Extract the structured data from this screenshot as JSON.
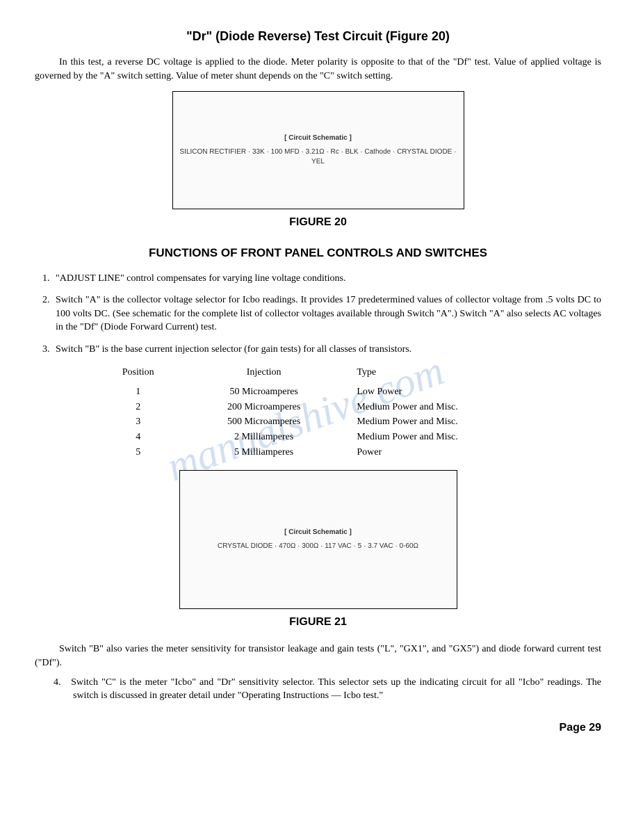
{
  "title_main": "\"Dr\" (Diode Reverse) Test Circuit (Figure 20)",
  "para1": "In this test, a reverse DC voltage is applied to the diode. Meter polarity is opposite to that of the \"Df\" test. Value of applied voltage is governed by the \"A\" switch setting. Value of meter shunt depends on the \"C\" switch setting.",
  "fig20_caption": "FIGURE 20",
  "fig20_labels": "SILICON RECTIFIER · 33K · 100 MFD · 3.21Ω · Rc · BLK · Cathode · CRYSTAL DIODE · YEL",
  "section2": "FUNCTIONS OF FRONT PANEL CONTROLS AND SWITCHES",
  "li1": "\"ADJUST LINE\" control compensates for varying line voltage conditions.",
  "li2": "Switch \"A\" is the collector voltage selector for Icbo readings. It provides 17 predetermined values of collector voltage from .5 volts DC to 100 volts DC. (See schematic for the complete list of collector voltages available through Switch \"A\".) Switch \"A\" also selects AC voltages in the \"Df\" (Diode Forward Current) test.",
  "li3": "Switch \"B\" is the base current injection selector (for gain tests) for all classes of transistors.",
  "table": {
    "headers": [
      "Position",
      "Injection",
      "Type"
    ],
    "rows": [
      [
        "1",
        "50 Microamperes",
        "Low Power"
      ],
      [
        "2",
        "200 Microamperes",
        "Medium Power and Misc."
      ],
      [
        "3",
        "500 Microamperes",
        "Medium Power and Misc."
      ],
      [
        "4",
        "2 Milliamperes",
        "Medium Power and Misc."
      ],
      [
        "5",
        "5 Milliamperes",
        "Power"
      ]
    ]
  },
  "fig21_caption": "FIGURE 21",
  "fig21_labels": "CRYSTAL DIODE · 470Ω · 300Ω · 117 VAC · 5 · 3.7 VAC · 0-60Ω",
  "para2": "Switch \"B\" also varies the meter sensitivity for transistor leakage and gain tests (\"L\", \"GX1\", and \"GX5\") and diode forward current test (\"Df\").",
  "li4": "Switch \"C\" is the meter \"Icbo\" and \"Dr\" sensitivity selector. This selector sets up the indicating circuit for all \"Icbo\" readings. The switch is discussed in greater detail under \"Operating Instructions — Icbo test.\"",
  "page_num": "Page 29",
  "watermark": "manualshive.com"
}
